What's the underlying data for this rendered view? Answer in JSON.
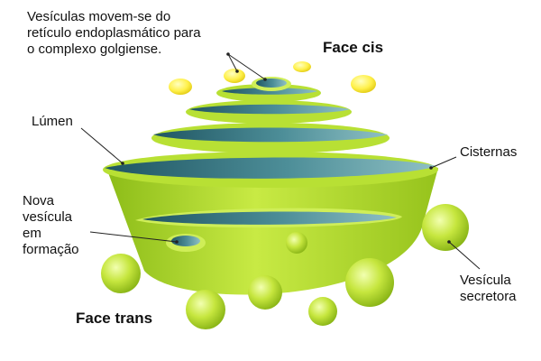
{
  "labels": {
    "vesicle_transport": "Vesículas movem-se do\nretículo endoplasmático para\no complexo golgiense.",
    "cis_face": "Face cis",
    "lumen": "Lúmen",
    "cisternae": "Cisternas",
    "new_vesicle": "Nova\nvesícula\nem\nformação",
    "secretory_vesicle": "Vesícula\nsecretora",
    "trans_face": "Face trans"
  },
  "colors": {
    "membrane_green": "#b8e034",
    "membrane_dark_green": "#7aa514",
    "lumen_teal": "#2e6e7a",
    "vesicle_yellow": "#fff04a",
    "leader_line": "#222222"
  }
}
